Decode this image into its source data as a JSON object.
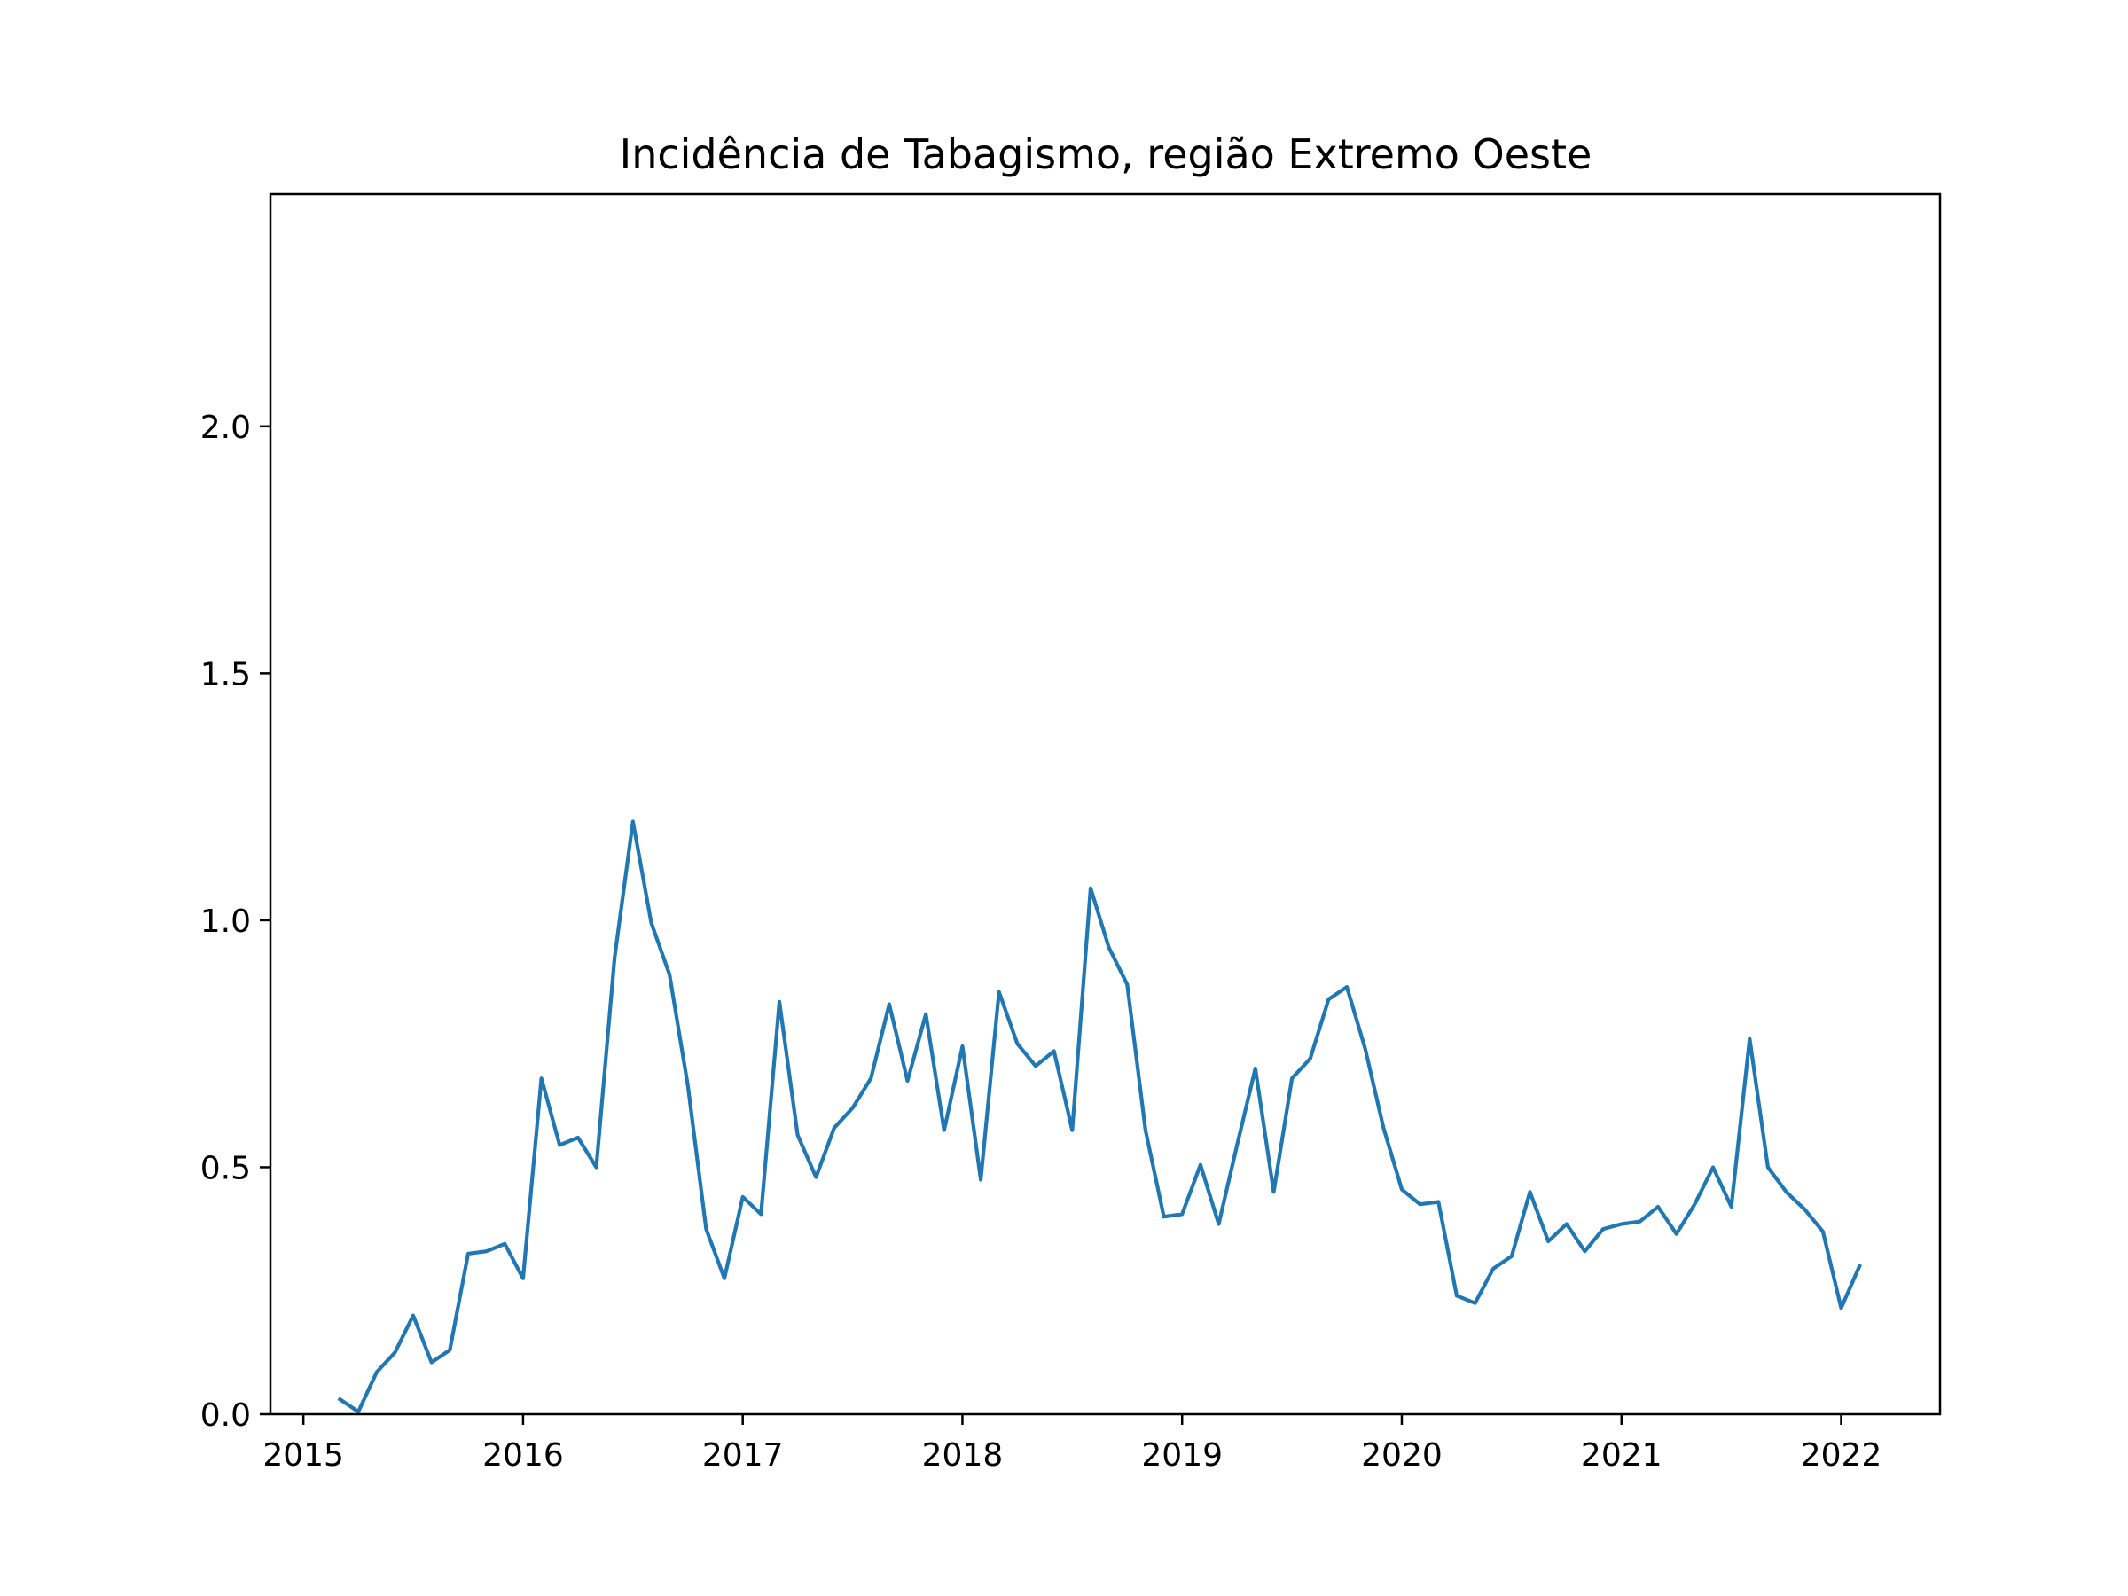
{
  "chart_data": {
    "type": "line",
    "title": "Incidência de Tabagismo, região Extremo Oeste",
    "xlabel": "",
    "ylabel": "",
    "xlim": [
      2014.85,
      2022.45
    ],
    "ylim": [
      0.0,
      2.47
    ],
    "grid": false,
    "legend": "none",
    "xticks": [
      2015,
      2016,
      2017,
      2018,
      2019,
      2020,
      2021,
      2022
    ],
    "xtick_labels": [
      "2015",
      "2016",
      "2017",
      "2018",
      "2019",
      "2020",
      "2021",
      "2022"
    ],
    "yticks": [
      0.0,
      0.5,
      1.0,
      1.5,
      2.0
    ],
    "ytick_labels": [
      "0.0",
      "0.5",
      "1.0",
      "1.5",
      "2.0"
    ],
    "series": [
      {
        "color": "#1f77b4",
        "x": [
          "2015-03",
          "2015-04",
          "2015-05",
          "2015-06",
          "2015-07",
          "2015-08",
          "2015-09",
          "2015-10",
          "2015-11",
          "2015-12",
          "2016-01",
          "2016-02",
          "2016-03",
          "2016-04",
          "2016-05",
          "2016-06",
          "2016-07",
          "2016-08",
          "2016-09",
          "2016-10",
          "2016-11",
          "2016-12",
          "2017-01",
          "2017-02",
          "2017-03",
          "2017-04",
          "2017-05",
          "2017-06",
          "2017-07",
          "2017-08",
          "2017-09",
          "2017-10",
          "2017-11",
          "2017-12",
          "2018-01",
          "2018-02",
          "2018-03",
          "2018-04",
          "2018-05",
          "2018-06",
          "2018-07",
          "2018-08",
          "2018-09",
          "2018-10",
          "2018-11",
          "2018-12",
          "2019-01",
          "2019-02",
          "2019-03",
          "2019-04",
          "2019-05",
          "2019-06",
          "2019-07",
          "2019-08",
          "2019-09",
          "2019-10",
          "2019-11",
          "2019-12",
          "2020-01",
          "2020-02",
          "2020-03",
          "2020-04",
          "2020-05",
          "2020-06",
          "2020-07",
          "2020-08",
          "2020-09",
          "2020-10",
          "2020-11",
          "2020-12",
          "2021-01",
          "2021-02",
          "2021-03",
          "2021-04",
          "2021-05",
          "2021-06",
          "2021-07",
          "2021-08",
          "2021-09",
          "2021-10",
          "2021-11",
          "2021-12",
          "2022-01",
          "2022-02"
        ],
        "y": [
          0.03,
          0.005,
          0.085,
          0.125,
          0.2,
          0.105,
          0.13,
          0.325,
          0.33,
          0.345,
          0.275,
          0.68,
          0.545,
          0.56,
          0.5,
          0.925,
          1.2,
          0.995,
          0.89,
          0.665,
          0.375,
          0.275,
          0.44,
          0.405,
          0.835,
          0.565,
          0.48,
          0.58,
          0.62,
          0.68,
          0.83,
          0.675,
          0.81,
          0.575,
          0.745,
          0.475,
          0.855,
          0.75,
          0.705,
          0.735,
          0.575,
          1.065,
          0.945,
          0.87,
          0.575,
          0.4,
          0.405,
          0.505,
          0.385,
          0.545,
          0.7,
          0.45,
          0.68,
          0.72,
          0.84,
          0.865,
          0.74,
          0.58,
          0.455,
          0.425,
          0.43,
          0.24,
          0.225,
          0.295,
          0.32,
          0.45,
          0.35,
          0.385,
          0.33,
          0.375,
          0.385,
          0.39,
          0.42,
          0.365,
          0.425,
          0.5,
          0.42,
          0.76,
          0.5,
          0.45,
          0.415,
          0.37,
          0.215,
          0.3
        ]
      }
    ]
  }
}
